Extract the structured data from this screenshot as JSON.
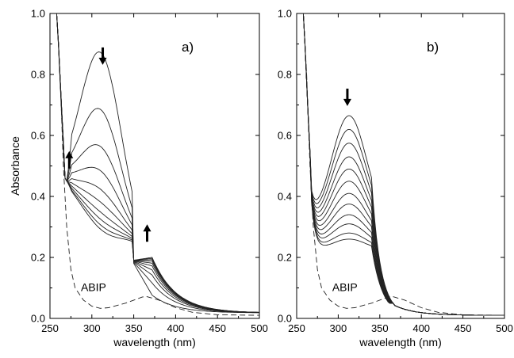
{
  "chart_data": [
    {
      "type": "line",
      "panel_label": "a)",
      "xlabel": "wavelength (nm)",
      "ylabel": "Absorbance",
      "xlim": [
        250,
        500
      ],
      "ylim": [
        0.0,
        1.0
      ],
      "x_ticks": [
        "250",
        "300",
        "350",
        "400",
        "450",
        "500"
      ],
      "y_ticks": [
        "0.0",
        "0.2",
        "0.4",
        "0.6",
        "0.8",
        "1.0"
      ],
      "reference_label": "ABIP",
      "annotations": [
        {
          "kind": "arrow-down",
          "x": 313,
          "y": 0.86
        },
        {
          "kind": "arrow-up",
          "x": 273,
          "y": 0.52
        },
        {
          "kind": "arrow-up",
          "x": 366,
          "y": 0.28
        }
      ],
      "params": {
        "peak": [
          0.8,
          0.6,
          0.47,
          0.385,
          0.32,
          0.275,
          0.24,
          0.215,
          0.195,
          0.18
        ],
        "center": 311,
        "width": 35,
        "plateau": 0.2
      },
      "ref_series": {
        "style": "dashed",
        "x": [
          258,
          262,
          266,
          270,
          275,
          280,
          290,
          300,
          310,
          320,
          340,
          360,
          365,
          380,
          400,
          420,
          450,
          500
        ],
        "y": [
          1.0,
          0.8,
          0.5,
          0.3,
          0.16,
          0.1,
          0.06,
          0.04,
          0.033,
          0.035,
          0.05,
          0.07,
          0.072,
          0.06,
          0.035,
          0.02,
          0.012,
          0.01
        ]
      }
    },
    {
      "type": "line",
      "panel_label": "b)",
      "xlabel": "wavelength (nm)",
      "ylabel": "",
      "xlim": [
        250,
        500
      ],
      "ylim": [
        0.0,
        1.0
      ],
      "x_ticks": [
        "250",
        "300",
        "350",
        "400",
        "450",
        "500"
      ],
      "y_ticks": [
        "0.0",
        "0.2",
        "0.4",
        "0.6",
        "0.8",
        "1.0"
      ],
      "reference_label": "ABIP",
      "annotations": [
        {
          "kind": "arrow-down",
          "x": 311,
          "y": 0.725
        }
      ],
      "params": {
        "peak": [
          0.665,
          0.62,
          0.575,
          0.53,
          0.49,
          0.45,
          0.41,
          0.375,
          0.34,
          0.31,
          0.28,
          0.26
        ],
        "center": 313,
        "width": 30,
        "plateau": 0.04
      },
      "ref_series": {
        "style": "dashed",
        "x": [
          258,
          262,
          266,
          270,
          275,
          280,
          290,
          300,
          310,
          320,
          340,
          360,
          365,
          380,
          400,
          420,
          450,
          500
        ],
        "y": [
          1.0,
          0.8,
          0.5,
          0.3,
          0.16,
          0.1,
          0.06,
          0.04,
          0.033,
          0.035,
          0.05,
          0.07,
          0.072,
          0.06,
          0.035,
          0.02,
          0.012,
          0.01
        ]
      }
    }
  ]
}
